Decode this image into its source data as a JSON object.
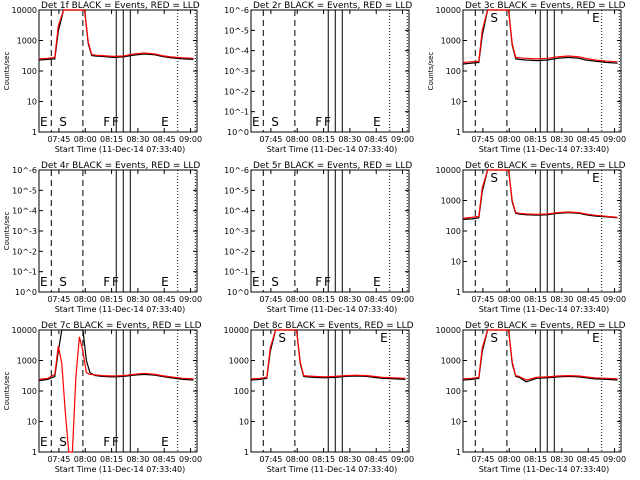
{
  "chart_data": [
    {
      "type": "line",
      "title": "Det 1f BLACK = Events, RED = LLD",
      "xlabel": "Start Time (11-Dec-14 07:33:40)",
      "ylabel": "Counts/sec",
      "x_ticks": [
        "07:45",
        "08:00",
        "08:15",
        "08:30",
        "08:45",
        "09:00"
      ],
      "y_ticks": [
        "1",
        "10",
        "100",
        "1000",
        "10000"
      ],
      "ylim": [
        1,
        10000
      ],
      "log_y": true,
      "x_minutes_after_start": [
        0,
        5,
        9,
        11,
        14,
        18,
        22,
        26,
        28,
        30,
        32,
        36,
        42,
        48,
        54,
        60,
        66,
        70,
        75,
        82,
        88
      ],
      "series": [
        {
          "color": "#000000",
          "values": [
            230,
            240,
            250,
            2000,
            10000,
            10000,
            10000,
            10000,
            800,
            320,
            310,
            300,
            280,
            290,
            330,
            360,
            340,
            300,
            270,
            250,
            240
          ]
        },
        {
          "color": "#ff0000",
          "values": [
            250,
            260,
            280,
            3000,
            10000,
            10000,
            10000,
            10000,
            900,
            350,
            330,
            320,
            300,
            310,
            360,
            390,
            360,
            320,
            290,
            270,
            260
          ]
        }
      ],
      "flags": [
        "E",
        "S",
        "F",
        "F",
        "E"
      ]
    },
    {
      "type": "line",
      "title": "Det 2r BLACK = Events, RED = LLD",
      "xlabel": "Start Time (11-Dec-14 07:33:40)",
      "ylabel": "",
      "x_ticks": [
        "07:45",
        "08:00",
        "08:15",
        "08:30",
        "08:45",
        "09:00"
      ],
      "y_ticks": [
        "10^0",
        "10^-1",
        "10^-2",
        "10^-3",
        "10^-4",
        "10^-5",
        "10^-6"
      ],
      "series": [],
      "flags": [
        "E",
        "S",
        "F",
        "F",
        "E"
      ]
    },
    {
      "type": "line",
      "title": "Det 3c BLACK = Events, RED = LLD",
      "xlabel": "Start Time (11-Dec-14 07:33:40)",
      "ylabel": "Counts/sec",
      "x_ticks": [
        "07:45",
        "08:00",
        "08:15",
        "08:30",
        "08:45",
        "09:00"
      ],
      "y_ticks": [
        "1",
        "10",
        "100",
        "1000",
        "10000"
      ],
      "ylim": [
        1,
        10000
      ],
      "log_y": true,
      "x_minutes_after_start": [
        0,
        5,
        9,
        11,
        14,
        18,
        22,
        26,
        28,
        30,
        32,
        36,
        42,
        48,
        54,
        60,
        66,
        70,
        75,
        82,
        88
      ],
      "series": [
        {
          "color": "#000000",
          "values": [
            170,
            180,
            190,
            1500,
            10000,
            10000,
            10000,
            10000,
            700,
            250,
            240,
            230,
            220,
            230,
            260,
            280,
            260,
            230,
            210,
            190,
            180
          ]
        },
        {
          "color": "#ff0000",
          "values": [
            190,
            200,
            210,
            2200,
            10000,
            10000,
            10000,
            10000,
            800,
            280,
            270,
            260,
            250,
            260,
            290,
            310,
            290,
            260,
            230,
            210,
            200
          ]
        }
      ],
      "flags": [
        "S",
        "E"
      ]
    },
    {
      "type": "line",
      "title": "Det 4r BLACK = Events, RED = LLD",
      "xlabel": "Start Time (11-Dec-14 07:33:40)",
      "ylabel": "Counts/sec",
      "x_ticks": [
        "07:45",
        "08:00",
        "08:15",
        "08:30",
        "08:45",
        "09:00"
      ],
      "y_ticks": [
        "10^0",
        "10^-1",
        "10^-2",
        "10^-3",
        "10^-4",
        "10^-5",
        "10^-6"
      ],
      "series": [],
      "flags": [
        "E",
        "S",
        "F",
        "F",
        "E"
      ]
    },
    {
      "type": "line",
      "title": "Det 5r BLACK = Events, RED = LLD",
      "xlabel": "Start Time (11-Dec-14 07:33:40)",
      "ylabel": "",
      "x_ticks": [
        "07:45",
        "08:00",
        "08:15",
        "08:30",
        "08:45",
        "09:00"
      ],
      "y_ticks": [
        "10^0",
        "10^-1",
        "10^-2",
        "10^-3",
        "10^-4",
        "10^-5",
        "10^-6"
      ],
      "series": [],
      "flags": [
        "E",
        "S",
        "F",
        "F",
        "E"
      ]
    },
    {
      "type": "line",
      "title": "Det 6c BLACK = Events, RED = LLD",
      "xlabel": "Start Time (11-Dec-14 07:33:40)",
      "ylabel": "",
      "x_ticks": [
        "07:45",
        "08:00",
        "08:15",
        "08:30",
        "08:45",
        "09:00"
      ],
      "y_ticks": [
        "1",
        "10",
        "100",
        "1000",
        "10000"
      ],
      "ylim": [
        1,
        10000
      ],
      "log_y": true,
      "x_minutes_after_start": [
        0,
        5,
        9,
        11,
        14,
        18,
        22,
        26,
        28,
        30,
        32,
        36,
        42,
        48,
        54,
        60,
        66,
        70,
        75,
        82,
        88
      ],
      "series": [
        {
          "color": "#000000",
          "values": [
            240,
            250,
            270,
            2000,
            10000,
            10000,
            10000,
            10000,
            900,
            380,
            360,
            340,
            330,
            340,
            380,
            400,
            380,
            340,
            310,
            290,
            270
          ]
        },
        {
          "color": "#ff0000",
          "values": [
            260,
            280,
            300,
            2600,
            10000,
            10000,
            10000,
            10000,
            1000,
            400,
            380,
            360,
            350,
            360,
            400,
            420,
            400,
            360,
            330,
            300,
            280
          ]
        }
      ],
      "flags": [
        "S",
        "E"
      ]
    },
    {
      "type": "line",
      "title": "Det 7c BLACK = Events, RED = LLD",
      "xlabel": "Start Time (11-Dec-14 07:33:40)",
      "ylabel": "Counts/sec",
      "x_ticks": [
        "07:45",
        "08:00",
        "08:15",
        "08:30",
        "08:45",
        "09:00"
      ],
      "y_ticks": [
        "1",
        "10",
        "100",
        "1000",
        "10000"
      ],
      "ylim": [
        1,
        10000
      ],
      "log_y": true,
      "x_minutes_after_start": [
        0,
        5,
        9,
        11,
        13,
        15,
        17,
        19,
        21,
        23,
        25,
        27,
        29,
        32,
        36,
        42,
        48,
        54,
        60,
        66,
        70,
        75,
        82,
        88
      ],
      "series": [
        {
          "color": "#000000",
          "values": [
            220,
            240,
            300,
            2000,
            10000,
            10000,
            10000,
            10000,
            10000,
            10000,
            10000,
            1000,
            400,
            320,
            300,
            290,
            300,
            330,
            350,
            330,
            300,
            270,
            240,
            230
          ]
        },
        {
          "color": "#ff0000",
          "values": [
            240,
            260,
            350,
            3000,
            800,
            20,
            1,
            1,
            300,
            6000,
            2000,
            400,
            350,
            340,
            320,
            310,
            320,
            350,
            380,
            350,
            320,
            290,
            260,
            250
          ]
        }
      ],
      "flags": [
        "E",
        "S",
        "F",
        "F",
        "E"
      ]
    },
    {
      "type": "line",
      "title": "Det 8c BLACK = Events, RED = LLD",
      "xlabel": "Start Time (11-Dec-14 07:33:40)",
      "ylabel": "",
      "x_ticks": [
        "07:45",
        "08:00",
        "08:15",
        "08:30",
        "08:45",
        "09:00"
      ],
      "y_ticks": [
        "1",
        "10",
        "100",
        "1000",
        "10000"
      ],
      "ylim": [
        1,
        10000
      ],
      "log_y": true,
      "x_minutes_after_start": [
        0,
        5,
        9,
        11,
        14,
        18,
        22,
        26,
        28,
        30,
        32,
        36,
        42,
        48,
        54,
        60,
        66,
        70,
        75,
        82,
        88
      ],
      "series": [
        {
          "color": "#000000",
          "values": [
            230,
            240,
            260,
            2000,
            10000,
            10000,
            10000,
            10000,
            800,
            300,
            290,
            280,
            270,
            280,
            300,
            310,
            300,
            280,
            260,
            250,
            240
          ]
        },
        {
          "color": "#ff0000",
          "values": [
            250,
            260,
            280,
            2600,
            10000,
            10000,
            10000,
            10000,
            900,
            320,
            310,
            300,
            290,
            300,
            320,
            330,
            320,
            300,
            280,
            270,
            260
          ]
        }
      ],
      "flags": [
        "S",
        "E"
      ]
    },
    {
      "type": "line",
      "title": "Det 9c BLACK = Events, RED = LLD",
      "xlabel": "Start Time (11-Dec-14 07:33:40)",
      "ylabel": "",
      "x_ticks": [
        "07:45",
        "08:00",
        "08:15",
        "08:30",
        "08:45",
        "09:00"
      ],
      "y_ticks": [
        "1",
        "10",
        "100",
        "1000",
        "10000"
      ],
      "ylim": [
        1,
        10000
      ],
      "log_y": true,
      "x_minutes_after_start": [
        0,
        5,
        9,
        11,
        14,
        18,
        22,
        26,
        28,
        30,
        32,
        36,
        42,
        48,
        54,
        60,
        66,
        70,
        75,
        82,
        88
      ],
      "series": [
        {
          "color": "#000000",
          "values": [
            230,
            240,
            260,
            2000,
            10000,
            10000,
            10000,
            10000,
            800,
            300,
            280,
            200,
            260,
            270,
            290,
            300,
            290,
            270,
            250,
            240,
            230
          ]
        },
        {
          "color": "#ff0000",
          "values": [
            250,
            260,
            280,
            2600,
            10000,
            10000,
            10000,
            10000,
            900,
            320,
            300,
            230,
            280,
            290,
            310,
            320,
            310,
            290,
            270,
            260,
            250
          ]
        }
      ],
      "flags": [
        "S",
        "E"
      ]
    }
  ]
}
